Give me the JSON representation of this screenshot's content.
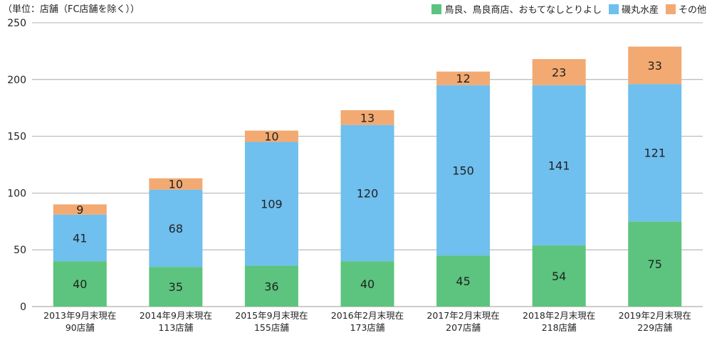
{
  "unit_label": "（単位：店舗（FC店舗を除く））",
  "colors": {
    "series_0": "#5cc47e",
    "series_1": "#6fbfef",
    "series_2": "#f2aa72",
    "grid": "#9a9a9a",
    "axis_text": "#222222"
  },
  "chart_data": {
    "type": "bar",
    "stacked": true,
    "title": "",
    "xlabel": "",
    "ylabel": "",
    "ylim": [
      0,
      250
    ],
    "yticks": [
      0,
      50,
      100,
      150,
      200,
      250
    ],
    "grid": true,
    "legend_position": "top-right",
    "categories": [
      [
        "2013年9月末現在",
        "90店舗"
      ],
      [
        "2014年9月末現在",
        "113店舗"
      ],
      [
        "2015年9月末現在",
        "155店舗"
      ],
      [
        "2016年2月末現在",
        "173店舗"
      ],
      [
        "2017年2月末現在",
        "207店舗"
      ],
      [
        "2018年2月末現在",
        "218店舗"
      ],
      [
        "2019年2月末現在",
        "229店舗"
      ]
    ],
    "series": [
      {
        "name": "鳥良、鳥良商店、おもてなしとりよし",
        "values": [
          40,
          35,
          36,
          40,
          45,
          54,
          75
        ]
      },
      {
        "name": "磯丸水産",
        "values": [
          41,
          68,
          109,
          120,
          150,
          141,
          121
        ]
      },
      {
        "name": "その他",
        "values": [
          9,
          10,
          10,
          13,
          12,
          23,
          33
        ]
      }
    ]
  }
}
